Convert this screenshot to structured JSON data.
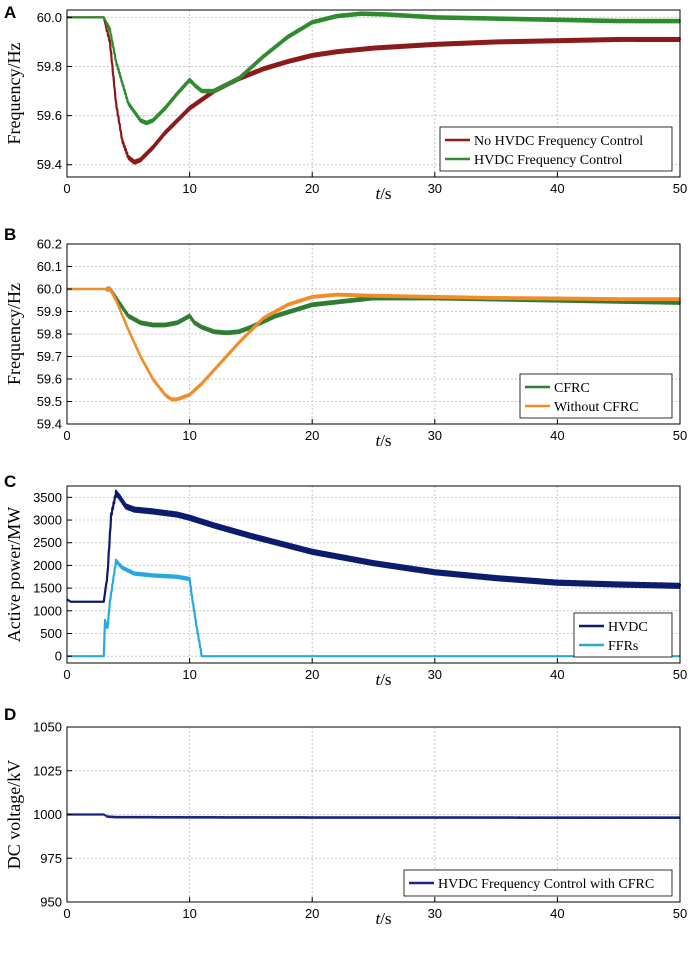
{
  "chart_data": [
    {
      "panel": "A",
      "type": "line",
      "ylabel": "Frequency/Hz",
      "xlabel_italic": "t",
      "xlabel_rest": "/s",
      "xlim": [
        0,
        50
      ],
      "ylim": [
        59.35,
        60.03
      ],
      "xticks": [
        0,
        10,
        20,
        30,
        40,
        50
      ],
      "yticks": [
        59.4,
        59.6,
        59.8,
        60.0
      ],
      "ytick_labels": [
        "59.4",
        "59.6",
        "59.8",
        "60.0"
      ],
      "grid": true,
      "legend_position": "bottom-right",
      "series": [
        {
          "name": "No HVDC Frequency Control",
          "color": "#8b1a1a",
          "ripple": 0.006,
          "x": [
            0,
            3,
            3.5,
            4,
            4.5,
            5,
            5.5,
            6,
            7,
            8,
            9,
            10,
            12,
            14,
            16,
            18,
            20,
            22,
            25,
            30,
            35,
            40,
            45,
            50
          ],
          "y": [
            60.0,
            60.0,
            59.9,
            59.65,
            59.5,
            59.43,
            59.41,
            59.42,
            59.47,
            59.53,
            59.58,
            59.63,
            59.7,
            59.75,
            59.79,
            59.82,
            59.845,
            59.86,
            59.875,
            59.89,
            59.9,
            59.905,
            59.91,
            59.91
          ]
        },
        {
          "name": "HVDC Frequency Control",
          "color": "#2e8b2e",
          "ripple": 0.005,
          "x": [
            0,
            3,
            3.5,
            4,
            5,
            6,
            6.5,
            7,
            8,
            9,
            10,
            10.5,
            11,
            12,
            14,
            16,
            18,
            20,
            22,
            24,
            26,
            30,
            35,
            40,
            45,
            50
          ],
          "y": [
            60.0,
            60.0,
            59.95,
            59.82,
            59.65,
            59.58,
            59.57,
            59.58,
            59.63,
            59.69,
            59.745,
            59.72,
            59.7,
            59.7,
            59.75,
            59.84,
            59.92,
            59.98,
            60.005,
            60.015,
            60.012,
            60.0,
            59.995,
            59.99,
            59.985,
            59.985
          ]
        }
      ]
    },
    {
      "panel": "B",
      "type": "line",
      "ylabel": "Frequency/Hz",
      "xlabel_italic": "t",
      "xlabel_rest": "/s",
      "xlim": [
        0,
        50
      ],
      "ylim": [
        59.4,
        60.2
      ],
      "xticks": [
        0,
        10,
        20,
        30,
        40,
        50
      ],
      "yticks": [
        59.4,
        59.5,
        59.6,
        59.7,
        59.8,
        59.9,
        60.0,
        60.1,
        60.2
      ],
      "ytick_labels": [
        "59.4",
        "59.5",
        "59.6",
        "59.7",
        "59.8",
        "59.9",
        "60.0",
        "60.1",
        "60.2"
      ],
      "grid": true,
      "legend_position": "bottom-right",
      "series": [
        {
          "name": "CFRC",
          "color": "#2e7d32",
          "ripple": 0.006,
          "x": [
            0,
            3,
            3.5,
            4,
            5,
            6,
            7,
            8,
            9,
            10,
            10.4,
            11,
            12,
            13,
            14,
            15,
            17,
            20,
            25,
            30,
            35,
            40,
            45,
            50
          ],
          "y": [
            60.0,
            60.0,
            60.0,
            59.96,
            59.88,
            59.85,
            59.84,
            59.84,
            59.85,
            59.88,
            59.85,
            59.83,
            59.81,
            59.805,
            59.81,
            59.83,
            59.88,
            59.93,
            59.96,
            59.96,
            59.955,
            59.95,
            59.945,
            59.94
          ]
        },
        {
          "name": "Without CFRC",
          "color": "#f28c28",
          "ripple": 0.004,
          "x": [
            0,
            3,
            3.5,
            4,
            5,
            6,
            7,
            8,
            8.5,
            9,
            10,
            11,
            12,
            14,
            16,
            18,
            20,
            22,
            25,
            30,
            35,
            40,
            45,
            50
          ],
          "y": [
            60.0,
            60.0,
            60.0,
            59.95,
            59.82,
            59.7,
            59.6,
            59.53,
            59.51,
            59.51,
            59.53,
            59.58,
            59.64,
            59.76,
            59.87,
            59.93,
            59.965,
            59.975,
            59.97,
            59.965,
            59.96,
            59.958,
            59.955,
            59.955
          ]
        }
      ]
    },
    {
      "panel": "C",
      "type": "line",
      "ylabel": "Active power/MW",
      "xlabel_italic": "t",
      "xlabel_rest": "/s",
      "xlim": [
        0,
        50
      ],
      "ylim": [
        -150,
        3750
      ],
      "xticks": [
        0,
        10,
        20,
        30,
        40,
        50
      ],
      "yticks": [
        0,
        500,
        1000,
        1500,
        2000,
        2500,
        3000,
        3500
      ],
      "ytick_labels": [
        "0",
        "500",
        "1000",
        "1500",
        "2000",
        "2500",
        "3000",
        "3500"
      ],
      "grid": true,
      "legend_position": "bottom-right",
      "series": [
        {
          "name": "HVDC",
          "color": "#0d1b6e",
          "ripple": 45,
          "x": [
            0,
            0.3,
            3,
            3.3,
            3.6,
            4,
            4.3,
            4.8,
            5.5,
            7,
            9,
            10,
            12,
            15,
            20,
            25,
            30,
            35,
            40,
            45,
            50
          ],
          "y": [
            1250,
            1200,
            1200,
            1800,
            3100,
            3600,
            3500,
            3300,
            3230,
            3190,
            3120,
            3050,
            2880,
            2650,
            2300,
            2050,
            1850,
            1720,
            1620,
            1580,
            1550
          ]
        },
        {
          "name": "FFRs",
          "color": "#29a8e0",
          "ripple": 25,
          "x": [
            0,
            3,
            3.1,
            3.3,
            3.5,
            4,
            4.5,
            5.5,
            7,
            9,
            10,
            10.2,
            10.6,
            11,
            20,
            30,
            40,
            50
          ],
          "y": [
            0,
            0,
            800,
            600,
            1200,
            2100,
            1950,
            1820,
            1780,
            1750,
            1700,
            1300,
            600,
            0,
            0,
            0,
            0,
            0
          ]
        }
      ]
    },
    {
      "panel": "D",
      "type": "line",
      "ylabel": "DC voltage/kV",
      "xlabel_italic": "t",
      "xlabel_rest": "/s",
      "xlim": [
        0,
        50
      ],
      "ylim": [
        950,
        1050
      ],
      "xticks": [
        0,
        10,
        20,
        30,
        40,
        50
      ],
      "yticks": [
        950,
        975,
        1000,
        1025,
        1050
      ],
      "ytick_labels": [
        "950",
        "975",
        "1000",
        "1025",
        "1050"
      ],
      "grid": true,
      "legend_position": "bottom-right",
      "series": [
        {
          "name": "HVDC Frequency Control with CFRC",
          "color": "#1a237e",
          "ripple": 0.15,
          "x": [
            0,
            3,
            3.3,
            4,
            10,
            20,
            30,
            40,
            50
          ],
          "y": [
            1000,
            1000,
            998.8,
            998.5,
            998.4,
            998.3,
            998.3,
            998.2,
            998.2
          ]
        }
      ]
    }
  ]
}
